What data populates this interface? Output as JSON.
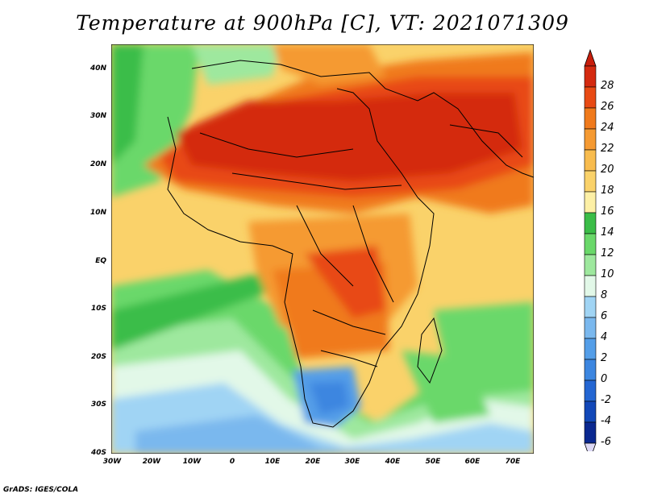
{
  "title": "Temperature at 900hPa [C], VT: 2021071309",
  "footer": "GrADS: IGES/COLA",
  "y_ticks": [
    "40N",
    "30N",
    "20N",
    "10N",
    "EQ",
    "10S",
    "20S",
    "30S",
    "40S"
  ],
  "x_ticks": [
    "30W",
    "20W",
    "10W",
    "0",
    "10E",
    "20E",
    "30E",
    "40E",
    "50E",
    "60E",
    "70E"
  ],
  "colorbar": {
    "labels": [
      "28",
      "26",
      "24",
      "22",
      "20",
      "18",
      "16",
      "14",
      "12",
      "10",
      "8",
      "6",
      "4",
      "2",
      "0",
      "-2",
      "-4",
      "-6"
    ],
    "colors": [
      "#d42a10",
      "#e84a14",
      "#f07a1c",
      "#f59a32",
      "#f8bc4e",
      "#fad26a",
      "#fdf0a6",
      "#3bbd48",
      "#6ad86a",
      "#9ee89e",
      "#e2f8e8",
      "#a0d4f4",
      "#7ab8ee",
      "#549ee8",
      "#3c86e0",
      "#2466d2",
      "#1248b8",
      "#0a2890"
    ],
    "over_color": "#c81e0c",
    "under_color": "#dcd8f4"
  }
}
